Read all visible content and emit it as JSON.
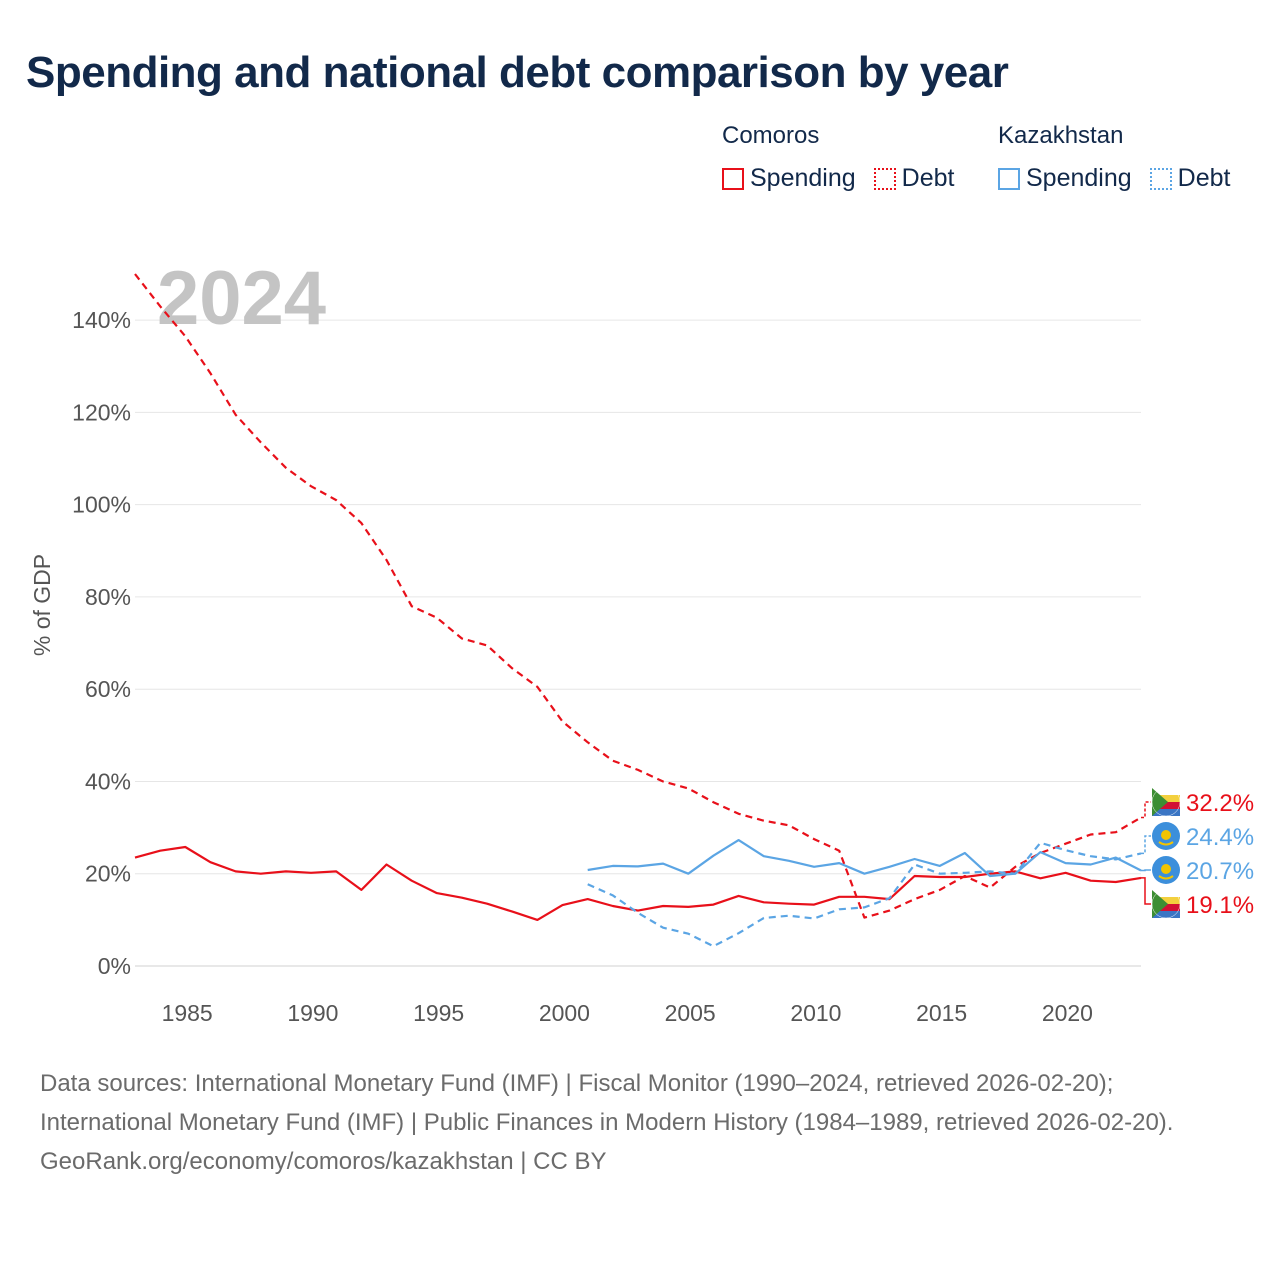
{
  "title": "Spending and national debt comparison by year",
  "legend": {
    "groups": [
      {
        "country": "Comoros",
        "color": "#e8101a",
        "items": [
          {
            "label": "Spending",
            "style": "solid"
          },
          {
            "label": "Debt",
            "style": "dotted"
          }
        ]
      },
      {
        "country": "Kazakhstan",
        "color": "#5ba5e4",
        "items": [
          {
            "label": "Spending",
            "style": "solid"
          },
          {
            "label": "Debt",
            "style": "dotted"
          }
        ]
      }
    ]
  },
  "chart_data": {
    "type": "line",
    "ylabel": "% of GDP",
    "xlabel": "",
    "year_watermark": "2024",
    "xlim": [
      1984,
      2024
    ],
    "ylim": [
      0,
      150
    ],
    "x_ticks": [
      1985,
      1990,
      1995,
      2000,
      2005,
      2010,
      2015,
      2020
    ],
    "y_ticks": [
      0,
      20,
      40,
      60,
      80,
      100,
      120,
      140
    ],
    "y_tick_labels": [
      "0%",
      "20%",
      "40%",
      "60%",
      "80%",
      "100%",
      "120%",
      "140%"
    ],
    "grid": true,
    "series": [
      {
        "name": "Comoros Debt",
        "country": "Comoros",
        "metric": "Debt",
        "color": "#e8101a",
        "dashed": true,
        "end_label": "32.2%",
        "x": [
          1984,
          1985,
          1986,
          1987,
          1988,
          1989,
          1990,
          1991,
          1992,
          1993,
          1994,
          1995,
          1996,
          1997,
          1998,
          1999,
          2000,
          2001,
          2002,
          2003,
          2004,
          2005,
          2006,
          2007,
          2008,
          2009,
          2010,
          2011,
          2012,
          2013,
          2014,
          2015,
          2016,
          2017,
          2018,
          2019,
          2020,
          2021,
          2022,
          2023,
          2024
        ],
        "y": [
          150,
          143,
          136.5,
          128.5,
          119.5,
          113.5,
          108,
          104,
          101,
          96,
          88,
          78,
          75.5,
          71,
          69.5,
          64.5,
          60.5,
          53,
          48.5,
          44.5,
          42.5,
          40,
          38.5,
          35.5,
          33,
          31.5,
          30.5,
          27.5,
          25,
          10.5,
          12,
          14.5,
          16.5,
          19.5,
          17,
          21.5,
          24.5,
          26.5,
          28.5,
          29,
          32.2
        ]
      },
      {
        "name": "Comoros Spending",
        "country": "Comoros",
        "metric": "Spending",
        "color": "#e8101a",
        "dashed": false,
        "end_label": "19.1%",
        "x": [
          1984,
          1985,
          1986,
          1987,
          1988,
          1989,
          1990,
          1991,
          1992,
          1993,
          1994,
          1995,
          1996,
          1997,
          1998,
          1999,
          2000,
          2001,
          2002,
          2003,
          2004,
          2005,
          2006,
          2007,
          2008,
          2009,
          2010,
          2011,
          2012,
          2013,
          2014,
          2015,
          2016,
          2017,
          2018,
          2019,
          2020,
          2021,
          2022,
          2023,
          2024
        ],
        "y": [
          23.5,
          25,
          25.8,
          22.5,
          20.5,
          20,
          20.5,
          20.2,
          20.5,
          16.5,
          22,
          18.5,
          15.8,
          14.8,
          13.5,
          11.8,
          10,
          13.2,
          14.5,
          13,
          12,
          13,
          12.8,
          13.3,
          15.2,
          13.8,
          13.5,
          13.3,
          15,
          15,
          14.5,
          19.5,
          19.3,
          19.3,
          20,
          20.5,
          19,
          20.2,
          18.5,
          18.2,
          19.1
        ]
      },
      {
        "name": "Kazakhstan Spending",
        "country": "Kazakhstan",
        "metric": "Spending",
        "color": "#5ba5e4",
        "dashed": false,
        "end_label": "20.7%",
        "x": [
          2002,
          2003,
          2004,
          2005,
          2006,
          2007,
          2008,
          2009,
          2010,
          2011,
          2012,
          2013,
          2014,
          2015,
          2016,
          2017,
          2018,
          2019,
          2020,
          2021,
          2022,
          2023,
          2024
        ],
        "y": [
          20.8,
          21.7,
          21.6,
          22.2,
          20,
          23.9,
          27.3,
          23.8,
          22.8,
          21.5,
          22.3,
          20,
          21.5,
          23.2,
          21.7,
          24.5,
          19.5,
          20,
          24.7,
          22.3,
          22,
          23.5,
          20.7
        ]
      },
      {
        "name": "Kazakhstan Debt",
        "country": "Kazakhstan",
        "metric": "Debt",
        "color": "#5ba5e4",
        "dashed": true,
        "end_label": "24.4%",
        "x": [
          2002,
          2003,
          2004,
          2005,
          2006,
          2007,
          2008,
          2009,
          2010,
          2011,
          2012,
          2013,
          2014,
          2015,
          2016,
          2017,
          2018,
          2019,
          2020,
          2021,
          2022,
          2023,
          2024
        ],
        "y": [
          17.7,
          15.3,
          11.5,
          8.3,
          7,
          4.3,
          7.1,
          10.4,
          10.9,
          10.3,
          12.3,
          12.7,
          14.7,
          22,
          20,
          20.2,
          20.5,
          20,
          26.7,
          25.1,
          23.8,
          23.1,
          24.4
        ]
      }
    ]
  },
  "footer": {
    "sources": "Data sources: International Monetary Fund (IMF) | Fiscal Monitor (1990–2024, retrieved 2026-02-20); International Monetary Fund (IMF) | Public Finances in Modern History (1984–1989, retrieved 2026-02-20).",
    "credit": "GeoRank.org/economy/comoros/kazakhstan | CC BY"
  }
}
